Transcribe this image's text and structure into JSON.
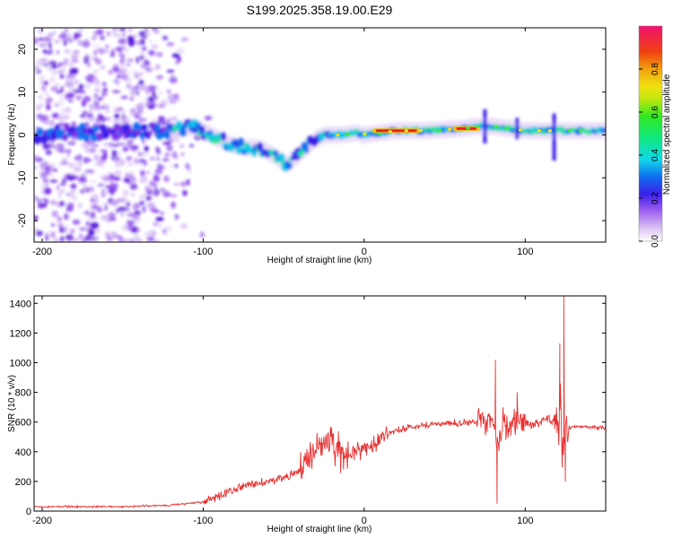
{
  "title": "S199.2025.358.19.00.E29",
  "chart_data": [
    {
      "type": "heatmap",
      "name": "spectrogram",
      "xlabel": "Height of straight line (km)",
      "ylabel": "Frequency (Hz)",
      "xlim": [
        -205,
        150
      ],
      "ylim": [
        -25,
        25
      ],
      "xticks": [
        -200,
        -100,
        0,
        100
      ],
      "yticks": [
        20,
        10,
        0,
        -10,
        -20
      ],
      "ridge": {
        "x": [
          -200,
          -175,
          -160,
          -150,
          -140,
          -120,
          -105,
          -95,
          -85,
          -75,
          -65,
          -55,
          -48,
          -42,
          -36,
          -30,
          -25,
          -15,
          -5,
          0,
          20,
          40,
          60,
          70,
          74,
          80,
          90,
          100,
          115,
          120,
          125,
          150
        ],
        "y": [
          0,
          1,
          0,
          1,
          1,
          1,
          2,
          0,
          -2,
          -3,
          -3,
          -5,
          -7,
          -5,
          -3,
          -1,
          0,
          0,
          0.5,
          0,
          1,
          1,
          1.5,
          2,
          2,
          2,
          1.5,
          1,
          1,
          1,
          1,
          1
        ]
      },
      "hot_segments": [
        {
          "x0": 5,
          "x1": 35,
          "y": 1
        },
        {
          "x0": 55,
          "x1": 72,
          "y": 1.5
        }
      ],
      "colorbar": {
        "label": "Normalized spectral amplitude",
        "ticks": [
          "0.0",
          "0.2",
          "0.4",
          "0.6",
          "0.8"
        ],
        "range": [
          0,
          1
        ]
      }
    },
    {
      "type": "line",
      "name": "snr",
      "xlabel": "Height of straight line (km)",
      "ylabel": "SNR (10 * v/v)",
      "xlim": [
        -205,
        150
      ],
      "ylim": [
        0,
        1450
      ],
      "xticks": [
        -200,
        -100,
        0,
        100
      ],
      "yticks": [
        0,
        200,
        400,
        600,
        800,
        1000,
        1200,
        1400
      ],
      "color": "#e83030",
      "series": [
        {
          "name": "SNR",
          "x": [
            -205,
            -180,
            -150,
            -120,
            -100,
            -90,
            -80,
            -70,
            -60,
            -50,
            -45,
            -40,
            -35,
            -30,
            -25,
            -22,
            -18,
            -15,
            -10,
            -5,
            0,
            5,
            10,
            20,
            30,
            40,
            50,
            60,
            70,
            75,
            78,
            80,
            82,
            84,
            86,
            88,
            90,
            95,
            100,
            105,
            110,
            115,
            118,
            120,
            121,
            122,
            123,
            125,
            130,
            140,
            150
          ],
          "y": [
            30,
            30,
            30,
            40,
            60,
            100,
            150,
            180,
            200,
            220,
            250,
            280,
            350,
            400,
            450,
            520,
            430,
            380,
            390,
            400,
            420,
            450,
            500,
            540,
            570,
            585,
            590,
            595,
            600,
            600,
            605,
            610,
            500,
            450,
            630,
            580,
            560,
            610,
            600,
            580,
            600,
            620,
            600,
            580,
            560,
            900,
            350,
            550,
            570,
            565,
            560
          ]
        }
      ],
      "spikes": [
        {
          "x": 81.5,
          "y": 1020
        },
        {
          "x": 82.5,
          "y": 50
        },
        {
          "x": 88,
          "y": 480
        },
        {
          "x": 95,
          "y": 800
        },
        {
          "x": 121.5,
          "y": 1130
        },
        {
          "x": 124,
          "y": 1450
        },
        {
          "x": 125,
          "y": 200
        }
      ]
    }
  ]
}
